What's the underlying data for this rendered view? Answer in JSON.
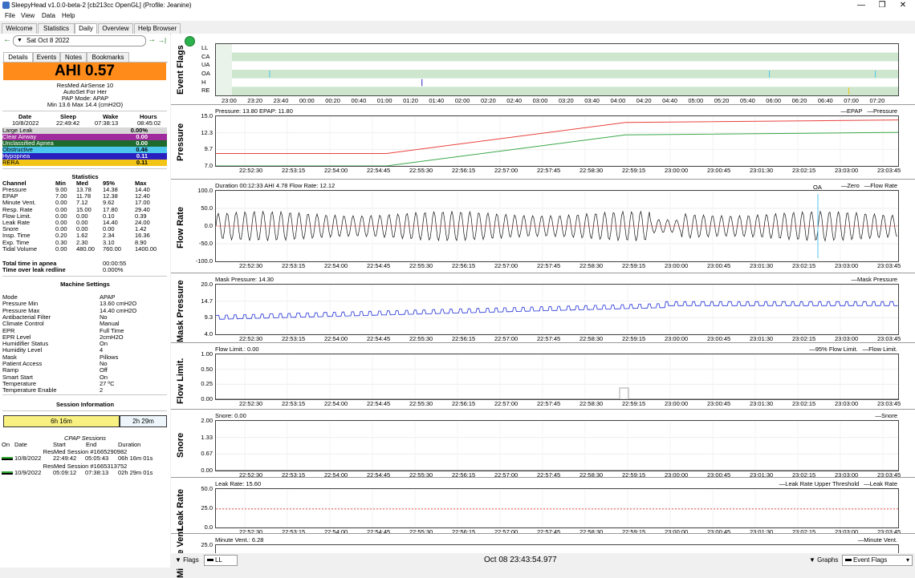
{
  "window": {
    "title": "SleepyHead v1.0.0-beta-2 [cb213cc OpenGL] (Profile: Jeanine)",
    "min": "—",
    "max": "❐",
    "close": "✕"
  },
  "menu": [
    "File",
    "View",
    "Data",
    "Help"
  ],
  "tabs": [
    "Welcome",
    "Statistics",
    "Daily",
    "Overview",
    "Help Browser"
  ],
  "nav": {
    "date": "Sat Oct 8 2022",
    "back": "←",
    "fwd": "→",
    "last": "→|"
  },
  "subtabs": [
    "Details",
    "Events",
    "Notes",
    "Bookmarks"
  ],
  "ahi": "AHI 0.57",
  "machine_info": [
    "ResMed AirSense 10",
    "AutoSet For Her",
    "PAP Mode: APAP",
    "Min 13.6 Max 14.4 (cmH2O)"
  ],
  "sleep": {
    "headers": [
      "Date",
      "Sleep",
      "Wake",
      "Hours"
    ],
    "values": [
      "10/8/2022",
      "22:49:42",
      "07:38:13",
      "08:45:02"
    ]
  },
  "events": [
    {
      "name": "Large Leak",
      "value": "0.00%",
      "color": "#d8d8d8",
      "text": "#000"
    },
    {
      "name": "Clear Airway",
      "value": "0.00",
      "color": "#a02b9c",
      "text": "#fff"
    },
    {
      "name": "Unclassified Apnea",
      "value": "0.00",
      "color": "#1e6a2e",
      "text": "#fff"
    },
    {
      "name": "Obstructive",
      "value": "0.46",
      "color": "#4ec7ee",
      "text": "#000"
    },
    {
      "name": "Hypopnea",
      "value": "0.11",
      "color": "#2a1fbf",
      "text": "#fff"
    },
    {
      "name": "RERA",
      "value": "0.11",
      "color": "#f2c416",
      "text": "#000"
    }
  ],
  "statistics": {
    "title": "Statistics",
    "headers": [
      "Channel",
      "Min",
      "Med",
      "95%",
      "Max"
    ],
    "rows": [
      [
        "Pressure",
        "9.00",
        "13.78",
        "14.38",
        "14.40"
      ],
      [
        "EPAP",
        "7.00",
        "11.78",
        "12.38",
        "12.40"
      ],
      [
        "Minute Vent.",
        "0.00",
        "7.12",
        "9.62",
        "17.00"
      ],
      [
        "Resp. Rate",
        "0.00",
        "15.00",
        "17.80",
        "29.40"
      ],
      [
        "Flow Limit.",
        "0.00",
        "0.00",
        "0.10",
        "0.39"
      ],
      [
        "Leak Rate",
        "0.00",
        "0.00",
        "14.40",
        "24.00"
      ],
      [
        "Snore",
        "0.00",
        "0.00",
        "0.00",
        "1.42"
      ],
      [
        "Insp. Time",
        "0.20",
        "1.62",
        "2.34",
        "16.36"
      ],
      [
        "Exp. Time",
        "0.30",
        "2.30",
        "3.10",
        "8.90"
      ],
      [
        "Tidal Volume",
        "0.00",
        "480.00",
        "760.00",
        "1400.00"
      ]
    ],
    "apnea_label": "Total time in apnea",
    "apnea_value": "00:00:55",
    "leak_label": "Time over leak redline",
    "leak_value": "0.000%"
  },
  "machine_settings": {
    "title": "Machine Settings",
    "rows": [
      [
        "Mode",
        "APAP"
      ],
      [
        "Pressure Min",
        "13.60 cmH2O"
      ],
      [
        "Pressure Max",
        "14.40 cmH2O"
      ],
      [
        "Antibacterial Filter",
        "No"
      ],
      [
        "Climate Control",
        "Manual"
      ],
      [
        "EPR",
        "Full Time"
      ],
      [
        "EPR Level",
        "2cmH2O"
      ],
      [
        "Humidifier Status",
        "On"
      ],
      [
        "Humidity Level",
        "4"
      ],
      [
        "Mask",
        "Pillows"
      ],
      [
        "Patient Access",
        "No"
      ],
      [
        "Ramp",
        "Off"
      ],
      [
        "Smart Start",
        "On"
      ],
      [
        "Temperature",
        "27 ºC"
      ],
      [
        "Temperature Enable",
        "2"
      ]
    ]
  },
  "session_info": {
    "title": "Session Information",
    "bar1": "6h 16m",
    "bar2": "2h 29m",
    "cpap_title": "CPAP Sessions",
    "headers": [
      "On",
      "Date",
      "Start",
      "End",
      "Duration"
    ],
    "sessions": [
      {
        "label": "ResMed Session #1665290982",
        "date": "10/8/2022",
        "start": "22:49:42",
        "end": "05:05:43",
        "duration": "06h 16m 01s"
      },
      {
        "label": "ResMed Session #1665313752",
        "date": "10/9/2022",
        "start": "05:09:12",
        "end": "07:38:13",
        "duration": "02h 29m 01s"
      }
    ]
  },
  "event_flags": {
    "ylabel": "Event Flags",
    "rows": [
      "LL",
      "CA",
      "UA",
      "OA",
      "H",
      "RE"
    ],
    "xticks": [
      "23:00",
      "23:20",
      "23:40",
      "00:00",
      "00:20",
      "00:40",
      "01:00",
      "01:20",
      "01:40",
      "02:00",
      "02:20",
      "02:40",
      "03:00",
      "03:20",
      "03:40",
      "04:00",
      "04:20",
      "04:40",
      "05:00",
      "05:20",
      "05:40",
      "06:00",
      "06:20",
      "06:40",
      "07:00",
      "07:20"
    ],
    "colors": {
      "OA": "#4ec7ee",
      "H": "#2a1fbf",
      "RE": "#f2c416"
    }
  },
  "xticks_detail": [
    "22:52:30",
    "22:53:15",
    "22:54:00",
    "22:54:45",
    "22:55:30",
    "22:56:15",
    "22:57:00",
    "22:57:45",
    "22:58:30",
    "22:59:15",
    "23:00:00",
    "23:00:45",
    "23:01:30",
    "23:02:15",
    "23:03:00",
    "23:03:45"
  ],
  "chart_data": [
    {
      "type": "line",
      "ylabel": "Pressure",
      "title": "Pressure: 13.80 EPAP: 11.80",
      "legend": [
        "EPAP",
        "Pressure"
      ],
      "yticks": [
        "15.0",
        "12.3",
        "9.7",
        "7.0"
      ],
      "ylim": [
        7.0,
        15.0
      ],
      "series": [
        {
          "name": "Pressure",
          "color": "#e8413d",
          "x": [
            0,
            0.25,
            0.6,
            1
          ],
          "values": [
            9.0,
            9.0,
            14.0,
            14.4
          ]
        },
        {
          "name": "EPAP",
          "color": "#3aa84a",
          "x": [
            0,
            0.25,
            0.6,
            1
          ],
          "values": [
            7.0,
            7.0,
            12.0,
            12.4
          ]
        }
      ]
    },
    {
      "type": "line",
      "ylabel": "Flow Rate",
      "title": "Duration 00:12:33 AHI 4.78 Flow Rate: 12.12",
      "legend": [
        "Zero",
        "Flow Rate"
      ],
      "yticks": [
        "100.0",
        "50.0",
        "0.0",
        "-50.0",
        "-100.0"
      ],
      "ylim": [
        -100,
        100
      ],
      "annotation": "OA"
    },
    {
      "type": "line",
      "ylabel": "Mask Pressure",
      "title": "Mask Pressure: 14.30",
      "legend": [
        "Mask Pressure"
      ],
      "yticks": [
        "20.0",
        "14.7",
        "9.3",
        "4.0"
      ],
      "ylim": [
        4.0,
        20.0
      ]
    },
    {
      "type": "line",
      "ylabel": "Flow Limit.",
      "title": "Flow Limit.: 0.00",
      "legend": [
        "95% Flow Limit.",
        "Flow Limit."
      ],
      "yticks": [
        "1.00",
        "0.50",
        "0.25",
        "0.00"
      ],
      "ylim": [
        0,
        1
      ]
    },
    {
      "type": "line",
      "ylabel": "Snore",
      "title": "Snore: 0.00",
      "legend": [
        "Snore"
      ],
      "yticks": [
        "2.00",
        "1.33",
        "0.67",
        "0.00"
      ],
      "ylim": [
        0,
        2
      ]
    },
    {
      "type": "line",
      "ylabel": "Leak Rate",
      "title": "Leak Rate: 15.60",
      "legend": [
        "Leak Rate Upper Threshold",
        "Leak Rate"
      ],
      "yticks": [
        "50.0",
        "25.0",
        "0.0"
      ],
      "ylim": [
        0,
        50
      ]
    },
    {
      "type": "line",
      "ylabel": "Minute Vent.",
      "title": "Minute Vent.: 6.28",
      "legend": [
        "Minute Vent."
      ],
      "yticks": [
        "25.0"
      ],
      "ylim": [
        0,
        25
      ]
    }
  ],
  "bottom": {
    "flags": "Flags",
    "ll": "LL",
    "time": "Oct 08 23:43:54.977",
    "graphs": "Graphs",
    "eventflags": "Event Flags"
  }
}
